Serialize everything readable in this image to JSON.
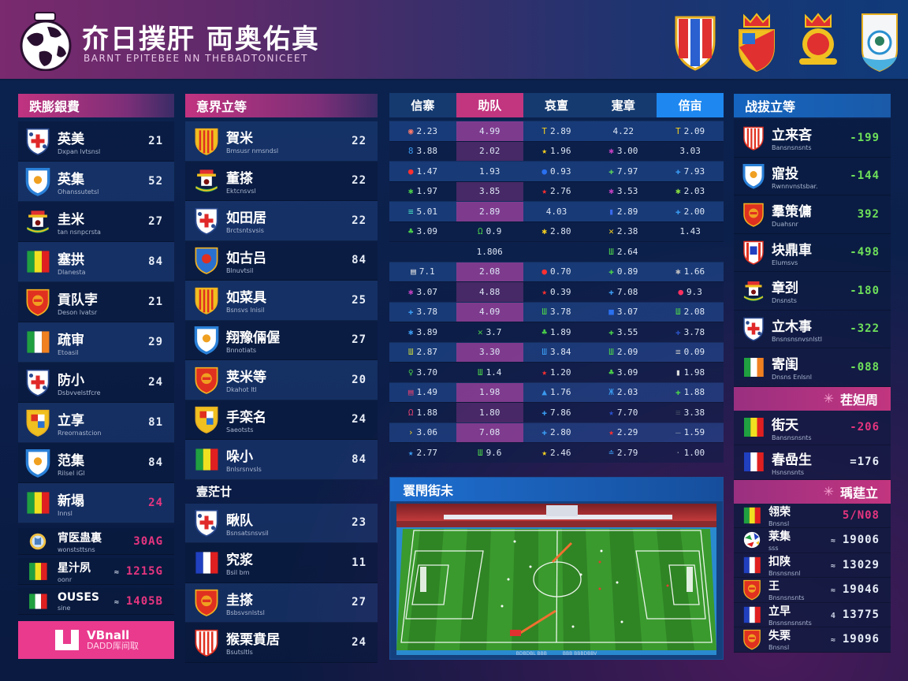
{
  "header": {
    "title": "夼日撲肝 両奥佑真",
    "subtitle": "BARNT EPITEBEE NN THEBADTONICEET",
    "crests": [
      "crest-red-blue-stripes",
      "crest-crown-yellow-red",
      "crest-crown-red-lion",
      "crest-white-blue-tree"
    ]
  },
  "left_panel": {
    "title": "跌膨銀費",
    "rows": [
      {
        "name": "英美",
        "sub": "Dxpan lvtsnsl",
        "value": "21",
        "badge": "shield-cross-red"
      },
      {
        "name": "英集",
        "sub": "Ohanssutetsl",
        "value": "52",
        "badge": "shield-blue-sun"
      },
      {
        "name": "圭米",
        "sub": "tan nsnpcrsta",
        "value": "27",
        "badge": "mascot-red"
      },
      {
        "name": "塞拱",
        "sub": "Dlanesta",
        "value": "84",
        "badge": "flag-green-yellow-red"
      },
      {
        "name": "貢队孛",
        "sub": "Deson lvatsr",
        "value": "21",
        "badge": "shield-red-gold"
      },
      {
        "name": "疏审",
        "sub": "Etoasil",
        "value": "29",
        "badge": "flag-green-white-orange"
      },
      {
        "name": "防小",
        "sub": "Dsbvvelstfcre",
        "value": "24",
        "badge": "shield-cross-red"
      },
      {
        "name": "立享",
        "sub": "Rreornastcion",
        "value": "81",
        "badge": "shield-yellow-red-quarter"
      },
      {
        "name": "范集",
        "sub": "Rilsel iGl",
        "value": "84",
        "badge": "shield-blue-sun"
      },
      {
        "name": "新塌",
        "sub": "Innsl",
        "value": "24",
        "badge": "flag-green-yellow-red",
        "pink": true
      }
    ],
    "mini_rows": [
      {
        "name": "宵医蛊裏",
        "sub": "wonststtsns",
        "prefix": "",
        "value": "30AG",
        "badge": "trophy-globe"
      },
      {
        "name": "星汁夙",
        "sub": "oonr",
        "prefix": "≈",
        "value": "1215G",
        "badge": "flag-green-yellow-red"
      },
      {
        "name": "OUSES",
        "sub": "sine",
        "prefix": "≈",
        "value": "1405B",
        "badge": "flag-green-white-red"
      }
    ],
    "promo": {
      "line1": "VBnall",
      "line2": "DADD厍间取"
    }
  },
  "mid_panel": {
    "title": "意界立等",
    "rows": [
      {
        "name": "賀米",
        "sub": "Bmsusr nmsndsl",
        "value": "22",
        "badge": "shield-yellow-red-stripes"
      },
      {
        "name": "董搽",
        "sub": "Ektcnsvsl",
        "value": "22",
        "badge": "mascot-red"
      },
      {
        "name": "如田居",
        "sub": "Brctsntsvsis",
        "value": "22",
        "badge": "shield-cross-red"
      },
      {
        "name": "如古吕",
        "sub": "Blnuvtsil",
        "value": "84",
        "badge": "shield-blue-red"
      },
      {
        "name": "如菜具",
        "sub": "Bsnsvs lnisil",
        "value": "25",
        "badge": "shield-yellow-red-stripes"
      },
      {
        "name": "翔豫倆偓",
        "sub": "Bnnotiats",
        "value": "27",
        "badge": "shield-blue-sun"
      },
      {
        "name": "荚米等",
        "sub": "Dkahot ltl",
        "value": "20",
        "badge": "shield-red-gold"
      },
      {
        "name": "手栾名",
        "sub": "Saeotsts",
        "value": "24",
        "badge": "shield-yellow-red-quarter"
      },
      {
        "name": "哚小",
        "sub": "Bnlsrsnvsls",
        "value": "84",
        "badge": "flag-green-yellow-red"
      }
    ],
    "subheading": "壹茫廿",
    "rows2": [
      {
        "name": "瞅队",
        "sub": "Bsnsatsnsvsil",
        "value": "23",
        "badge": "shield-cross-red"
      },
      {
        "name": "究浆",
        "sub": "Bsil bm",
        "value": "11",
        "badge": "flag-blue-white-red"
      },
      {
        "name": "圭搽",
        "sub": "Bsbsvsnlstsl",
        "value": "27",
        "badge": "shield-red-gold"
      },
      {
        "name": "猴栗賁居",
        "sub": "Bsutsltls",
        "value": "24",
        "badge": "shield-red-white-stripes"
      }
    ]
  },
  "odds_table": {
    "headers": [
      "信寨",
      "助队",
      "哀亶",
      "寁章",
      "倍亩"
    ],
    "rows": [
      {
        "cells": [
          {
            "i": "◉",
            "c": "#ff7a6a",
            "v": "2.23"
          },
          {
            "v": "4.99"
          },
          {
            "i": "T",
            "c": "#f5d020",
            "v": "2.89"
          },
          {
            "i": "",
            "c": "",
            "v": "4.22"
          },
          {
            "i": "T",
            "c": "#f5d020",
            "v": "2.09"
          }
        ],
        "hl": "hl",
        "t": "l"
      },
      {
        "cells": [
          {
            "i": "8",
            "c": "#3a9af0",
            "v": "3.88"
          },
          {
            "v": "2.02"
          },
          {
            "i": "★",
            "c": "#f5d020",
            "v": "1.96"
          },
          {
            "i": "✱",
            "c": "#c040c0",
            "v": "3.00"
          },
          {
            "i": "",
            "c": "",
            "v": "3.03"
          }
        ],
        "hl": "hld",
        "t": "d"
      },
      {
        "cells": [
          {
            "i": "●",
            "c": "#ff3030",
            "v": "1.47"
          },
          {
            "v": "1.93"
          },
          {
            "i": "●",
            "c": "#2a70f0",
            "v": "0.93"
          },
          {
            "i": "✚",
            "c": "#5ad05a",
            "v": "7.97"
          },
          {
            "i": "✚",
            "c": "#3a9af0",
            "v": "7.93"
          }
        ],
        "hl": "",
        "t": "l"
      },
      {
        "cells": [
          {
            "i": "✱",
            "c": "#4ad04a",
            "v": "1.97"
          },
          {
            "v": "3.85"
          },
          {
            "i": "★",
            "c": "#ff3030",
            "v": "2.76"
          },
          {
            "i": "✱",
            "c": "#c040c0",
            "v": "3.53"
          },
          {
            "i": "✱",
            "c": "#8ae040",
            "v": "2.03"
          }
        ],
        "hl": "hld",
        "t": "d"
      },
      {
        "cells": [
          {
            "i": "≡",
            "c": "#4ae0c0",
            "v": "5.01"
          },
          {
            "v": "2.89"
          },
          {
            "i": "",
            "c": "",
            "v": "4.03"
          },
          {
            "i": "▮",
            "c": "#3a6af0",
            "v": "2.89"
          },
          {
            "i": "✚",
            "c": "#3a9af0",
            "v": "2.00"
          }
        ],
        "hl": "hl",
        "t": "l"
      },
      {
        "cells": [
          {
            "i": "♣",
            "c": "#4ad04a",
            "v": "3.09"
          },
          {
            "i": "Ω",
            "c": "#4ad04a",
            "v": "0.9"
          },
          {
            "i": "✱",
            "c": "#f5d020",
            "v": "2.80"
          },
          {
            "i": "✕",
            "c": "#f5d020",
            "v": "2.38"
          },
          {
            "i": "",
            "c": "",
            "v": "1.43"
          }
        ],
        "hl": "",
        "t": "d"
      },
      {
        "cells": [
          {
            "i": "",
            "c": "",
            "v": ""
          },
          {
            "v": "1.806"
          },
          {
            "i": "",
            "c": "",
            "v": ""
          },
          {
            "i": "Ш",
            "c": "#4ad04a",
            "v": "2.64"
          },
          {
            "i": "",
            "c": "",
            "v": ""
          }
        ],
        "hl": "",
        "t": "e"
      },
      {
        "cells": [
          {
            "i": "▤",
            "c": "#e0e0e0",
            "v": "7.1"
          },
          {
            "v": "2.08"
          },
          {
            "i": "●",
            "c": "#ff3030",
            "v": "0.70"
          },
          {
            "i": "✚",
            "c": "#4ad04a",
            "v": "0.89"
          },
          {
            "i": "✱",
            "c": "#c0c0c0",
            "v": "1.66"
          }
        ],
        "hl": "hl",
        "t": "l"
      },
      {
        "cells": [
          {
            "i": "✱",
            "c": "#c040c0",
            "v": "3.07"
          },
          {
            "v": "4.88"
          },
          {
            "i": "★",
            "c": "#ff3030",
            "v": "0.39"
          },
          {
            "i": "✚",
            "c": "#3a9af0",
            "v": "7.08"
          },
          {
            "i": "●",
            "c": "#ff3060",
            "v": "9.3"
          }
        ],
        "hl": "hld",
        "t": "d"
      },
      {
        "cells": [
          {
            "i": "✚",
            "c": "#3a9af0",
            "v": "3.78"
          },
          {
            "v": "4.09"
          },
          {
            "i": "Ш",
            "c": "#4ad04a",
            "v": "3.78"
          },
          {
            "i": "■",
            "c": "#2a70f0",
            "v": "3.07"
          },
          {
            "i": "Ш",
            "c": "#4ad04a",
            "v": "2.08"
          }
        ],
        "hl": "hl",
        "t": "l"
      },
      {
        "cells": [
          {
            "i": "✱",
            "c": "#3a9af0",
            "v": "3.89"
          },
          {
            "i": "✕",
            "c": "#4ad04a",
            "v": "3.7"
          },
          {
            "i": "♣",
            "c": "#4ad04a",
            "v": "1.89"
          },
          {
            "i": "✚",
            "c": "#4ad04a",
            "v": "3.55"
          },
          {
            "i": "✚",
            "c": "#2a50c0",
            "v": "3.78"
          }
        ],
        "hl": "",
        "t": "d"
      },
      {
        "cells": [
          {
            "i": "Ш",
            "c": "#c0d040",
            "v": "2.87"
          },
          {
            "v": "3.30"
          },
          {
            "i": "Ш",
            "c": "#3a9af0",
            "v": "3.84"
          },
          {
            "i": "Ш",
            "c": "#4ad04a",
            "v": "2.09"
          },
          {
            "i": "≡",
            "c": "#c0c0c0",
            "v": "0.09"
          }
        ],
        "hl": "hl",
        "t": "l"
      },
      {
        "cells": [
          {
            "i": "♀",
            "c": "#4ad04a",
            "v": "3.70"
          },
          {
            "i": "Ш",
            "c": "#4ad04a",
            "v": "1.4"
          },
          {
            "i": "★",
            "c": "#ff3030",
            "v": "1.20"
          },
          {
            "i": "♣",
            "c": "#4ad04a",
            "v": "3.09"
          },
          {
            "i": "▮",
            "c": "#e0e0e0",
            "v": "1.98"
          }
        ],
        "hl": "",
        "t": "d"
      },
      {
        "cells": [
          {
            "i": "▤",
            "c": "#e04070",
            "v": "1.49"
          },
          {
            "v": "1.98"
          },
          {
            "i": "▲",
            "c": "#3a9af0",
            "v": "1.76"
          },
          {
            "i": "Ж",
            "c": "#3a9af0",
            "v": "2.03"
          },
          {
            "i": "✚",
            "c": "#4ad04a",
            "v": "1.88"
          }
        ],
        "hl": "hl",
        "t": "l"
      },
      {
        "cells": [
          {
            "i": "Ω",
            "c": "#e04070",
            "v": "1.88"
          },
          {
            "v": "1.80"
          },
          {
            "i": "✚",
            "c": "#3a9af0",
            "v": "7.86"
          },
          {
            "i": "★",
            "c": "#2a50d0",
            "v": "7.70"
          },
          {
            "i": "≡",
            "c": "#404860",
            "v": "3.38"
          }
        ],
        "hl": "hld",
        "t": "d"
      },
      {
        "cells": [
          {
            "i": "›",
            "c": "#f5d020",
            "v": "3.06"
          },
          {
            "v": "7.08"
          },
          {
            "i": "✚",
            "c": "#3a9af0",
            "v": "2.80"
          },
          {
            "i": "★",
            "c": "#ff3030",
            "v": "2.29"
          },
          {
            "i": "–",
            "c": "#8090a0",
            "v": "1.59"
          }
        ],
        "hl": "hl",
        "t": "l"
      },
      {
        "cells": [
          {
            "i": "★",
            "c": "#3a9af0",
            "v": "2.77"
          },
          {
            "i": "Ш",
            "c": "#4ad04a",
            "v": "9.6"
          },
          {
            "i": "★",
            "c": "#f5d020",
            "v": "2.46"
          },
          {
            "i": "≐",
            "c": "#3a9af0",
            "v": "2.79"
          },
          {
            "i": "·",
            "c": "#8090a0",
            "v": "1.00"
          }
        ],
        "hl": "",
        "t": "d"
      }
    ]
  },
  "pitch": {
    "title": "瞏閇街未",
    "caption_left": "BDBDBL BBB",
    "caption_right": "BBB BBBDBBV"
  },
  "right_panel": {
    "title": "战拔立等",
    "rows": [
      {
        "name": "立来吝",
        "sub": "Bansnsnsnts",
        "value": "-199",
        "badge": "shield-red-white-stripes"
      },
      {
        "name": "寣投",
        "sub": "Rwnnvnstsbar.",
        "value": "-144",
        "badge": "shield-blue-sun"
      },
      {
        "name": "羣策傭",
        "sub": "Duahsnr",
        "value": "392",
        "badge": "shield-red-gold"
      },
      {
        "name": "块鼎車",
        "sub": "Elumsvs",
        "value": "-498",
        "badge": "shield-red-blue-b"
      },
      {
        "name": "章刭",
        "sub": "Dnsnsts",
        "value": "-180",
        "badge": "mascot-red"
      },
      {
        "name": "立木事",
        "sub": "Bnsnsnsnvsnlstl",
        "value": "-322",
        "badge": "shield-cross-red"
      },
      {
        "name": "寄闺",
        "sub": "Dnsns Enlsnl",
        "value": "-088",
        "badge": "flag-green-white-orange"
      }
    ],
    "section2_title": "茬妲周",
    "rows2": [
      {
        "name": "街天",
        "sub": "Bansnsnsnts",
        "value": "-206",
        "badge": "flag-green-yellow-red",
        "pink": true
      },
      {
        "name": "春嵒生",
        "sub": "Hsnsnsnts",
        "value": "=176",
        "badge": "flag-blue-white-red"
      }
    ],
    "section3_title": "瑀莛立",
    "rows3": [
      {
        "name": "翎荣",
        "sub": "Bnsnsl",
        "prefix": "",
        "value": "5/N08",
        "badge": "flag-green-yellow-red",
        "pink": true
      },
      {
        "name": "莱集",
        "sub": "sss",
        "prefix": "≈",
        "value": "19006",
        "badge": "ball-multicolor"
      },
      {
        "name": "扣陕",
        "sub": "Bnsnsnsnl",
        "prefix": "≈",
        "value": "13029",
        "badge": "flag-blue-white-red"
      },
      {
        "name": "王",
        "sub": "Bnsnsnsnts",
        "prefix": "≈",
        "value": "19046",
        "badge": "shield-red-gold"
      },
      {
        "name": "立早",
        "sub": "Bnsnsnsnsnts",
        "prefix": "4",
        "value": "13775",
        "badge": "flag-blue-white-red"
      },
      {
        "name": "失栗",
        "sub": "Bnsnsl",
        "prefix": "≈",
        "value": "19096",
        "badge": "shield-red-gold"
      }
    ]
  },
  "colors": {
    "pink": "#c2357f",
    "blue_accent": "#1e88f0",
    "green": "#6ee05a",
    "bg": "#0c1f4a"
  }
}
